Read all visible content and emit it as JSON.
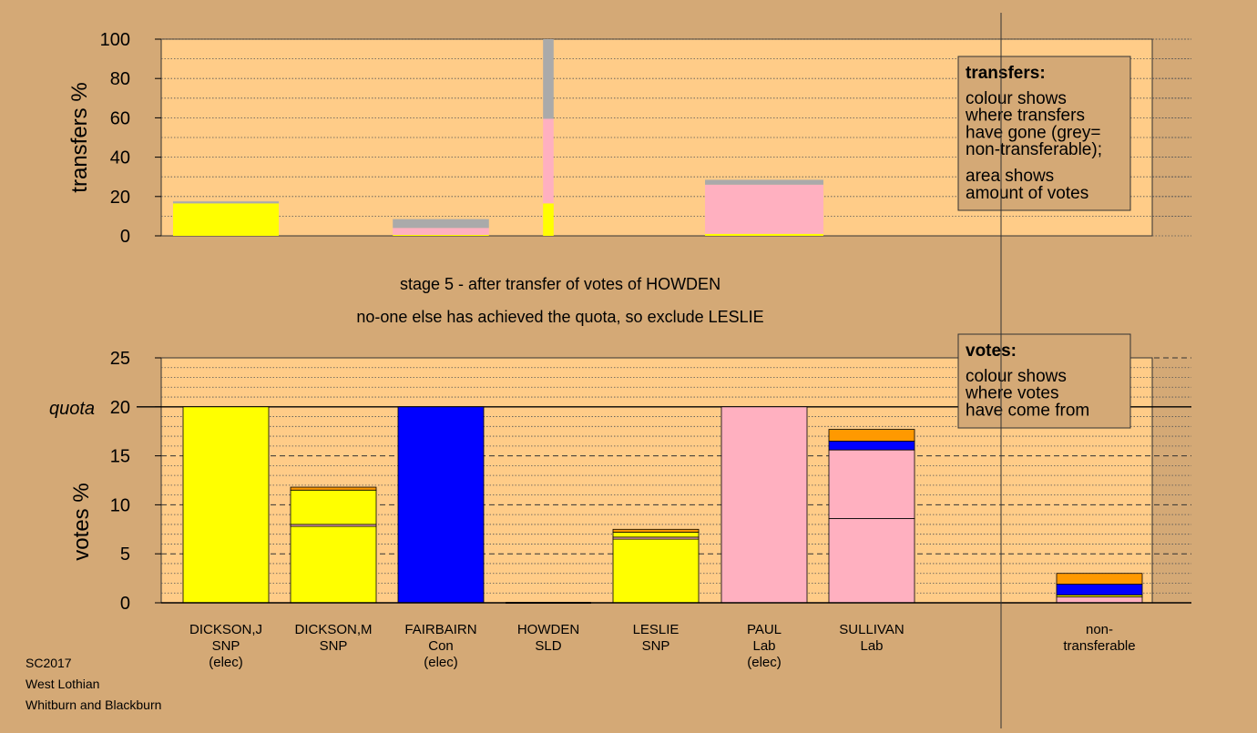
{
  "chart_data": [
    {
      "type": "bar",
      "stacked": true,
      "ylabel": "transfers %",
      "ylim": [
        0,
        100
      ],
      "yticks": [
        0,
        20,
        40,
        60,
        80,
        100
      ],
      "grid": "dotted horizontal",
      "legend": {
        "title": "transfers:",
        "lines": [
          "colour shows",
          "where transfers",
          "have gone (grey=",
          "non-transferable);"
        ],
        "lines2": [
          "area shows",
          "amount of votes"
        ],
        "placement": "top-right"
      },
      "bars": [
        {
          "candidate": "DICKSON,J",
          "width_pct": 100,
          "segments": [
            {
              "value": 16.5,
              "color": "#ffff00"
            },
            {
              "value": 1.0,
              "color": "#aaaaaa"
            }
          ]
        },
        {
          "candidate": "DICKSON,M",
          "width_pct": 0,
          "segments": []
        },
        {
          "candidate": "FAIRBAIRN",
          "width_pct": 91,
          "segments": [
            {
              "value": 0.5,
              "color": "#ffff00"
            },
            {
              "value": 3.5,
              "color": "#ffb0c0"
            },
            {
              "value": 4.5,
              "color": "#aaaaaa"
            }
          ]
        },
        {
          "candidate": "HOWDEN",
          "width_pct": 10,
          "segments": [
            {
              "value": 16.5,
              "color": "#ffff00"
            },
            {
              "value": 43.0,
              "color": "#ffb0c0"
            },
            {
              "value": 40.5,
              "color": "#aaaaaa"
            }
          ]
        },
        {
          "candidate": "LESLIE",
          "width_pct": 0,
          "segments": []
        },
        {
          "candidate": "PAUL",
          "width_pct": 112,
          "segments": [
            {
              "value": 1.0,
              "color": "#ffff00"
            },
            {
              "value": 25.0,
              "color": "#ffb0c0"
            },
            {
              "value": 2.5,
              "color": "#aaaaaa"
            }
          ]
        },
        {
          "candidate": "SULLIVAN",
          "width_pct": 0,
          "segments": []
        }
      ]
    },
    {
      "type": "bar",
      "stacked": true,
      "ylabel": "votes %",
      "ylim": [
        0,
        25
      ],
      "yticks": [
        0,
        5,
        10,
        15,
        20,
        25
      ],
      "quota": 20,
      "quota_label": "quota",
      "grid": "dashed horizontal",
      "legend": {
        "title": "votes:",
        "lines": [
          "colour shows",
          "where votes",
          "have come from"
        ],
        "placement": "top-right"
      },
      "bars": [
        {
          "name": "DICKSON,J",
          "party": "SNP",
          "status": "(elec)",
          "segments": [
            {
              "value": 20.0,
              "color": "#ffff00"
            }
          ]
        },
        {
          "name": "DICKSON,M",
          "party": "SNP",
          "status": "",
          "segments": [
            {
              "value": 7.8,
              "color": "#ffff00"
            },
            {
              "value": 0.2,
              "color": "#ffb0c0"
            },
            {
              "value": 3.5,
              "color": "#ffff00"
            },
            {
              "value": 0.3,
              "color": "#ff9900"
            }
          ]
        },
        {
          "name": "FAIRBAIRN",
          "party": "Con",
          "status": "(elec)",
          "segments": [
            {
              "value": 20.0,
              "color": "#0000ff"
            }
          ]
        },
        {
          "name": "HOWDEN",
          "party": "SLD",
          "status": "",
          "segments": []
        },
        {
          "name": "LESLIE",
          "party": "SNP",
          "status": "",
          "segments": [
            {
              "value": 6.5,
              "color": "#ffff00"
            },
            {
              "value": 0.2,
              "color": "#ffb0c0"
            },
            {
              "value": 0.5,
              "color": "#ffff00"
            },
            {
              "value": 0.3,
              "color": "#ff9900"
            }
          ]
        },
        {
          "name": "PAUL",
          "party": "Lab",
          "status": "(elec)",
          "segments": [
            {
              "value": 20.0,
              "color": "#ffb0c0"
            }
          ]
        },
        {
          "name": "SULLIVAN",
          "party": "Lab",
          "status": "",
          "segments": [
            {
              "value": 8.6,
              "color": "#ffb0c0"
            },
            {
              "value": 7.0,
              "color": "#ffb0c0"
            },
            {
              "value": 0.9,
              "color": "#0000ff"
            },
            {
              "value": 1.2,
              "color": "#ff9900"
            }
          ]
        },
        {
          "name": "non-transferable",
          "label_lines": [
            "non-",
            "transferable"
          ],
          "segments": [
            {
              "value": 0.6,
              "color": "#ffb0c0"
            },
            {
              "value": 0.2,
              "color": "#ffff00"
            },
            {
              "value": 1.1,
              "color": "#0000ff"
            },
            {
              "value": 1.1,
              "color": "#ff9900"
            }
          ]
        }
      ]
    }
  ],
  "stage_title": "stage 5 - after transfer of votes of HOWDEN",
  "stage_subtitle": "no-one else has achieved the quota, so exclude LESLIE",
  "footer": {
    "election": "SC2017",
    "council": "West Lothian",
    "ward": "Whitburn and Blackburn"
  },
  "colors": {
    "background": "#d4a976",
    "plot_background": "#ffcc88",
    "legend_background": "#d4a976",
    "snp": "#ffff00",
    "con": "#0000ff",
    "lab": "#ffb0c0",
    "ld": "#ff9900",
    "non_transferable": "#aaaaaa"
  }
}
